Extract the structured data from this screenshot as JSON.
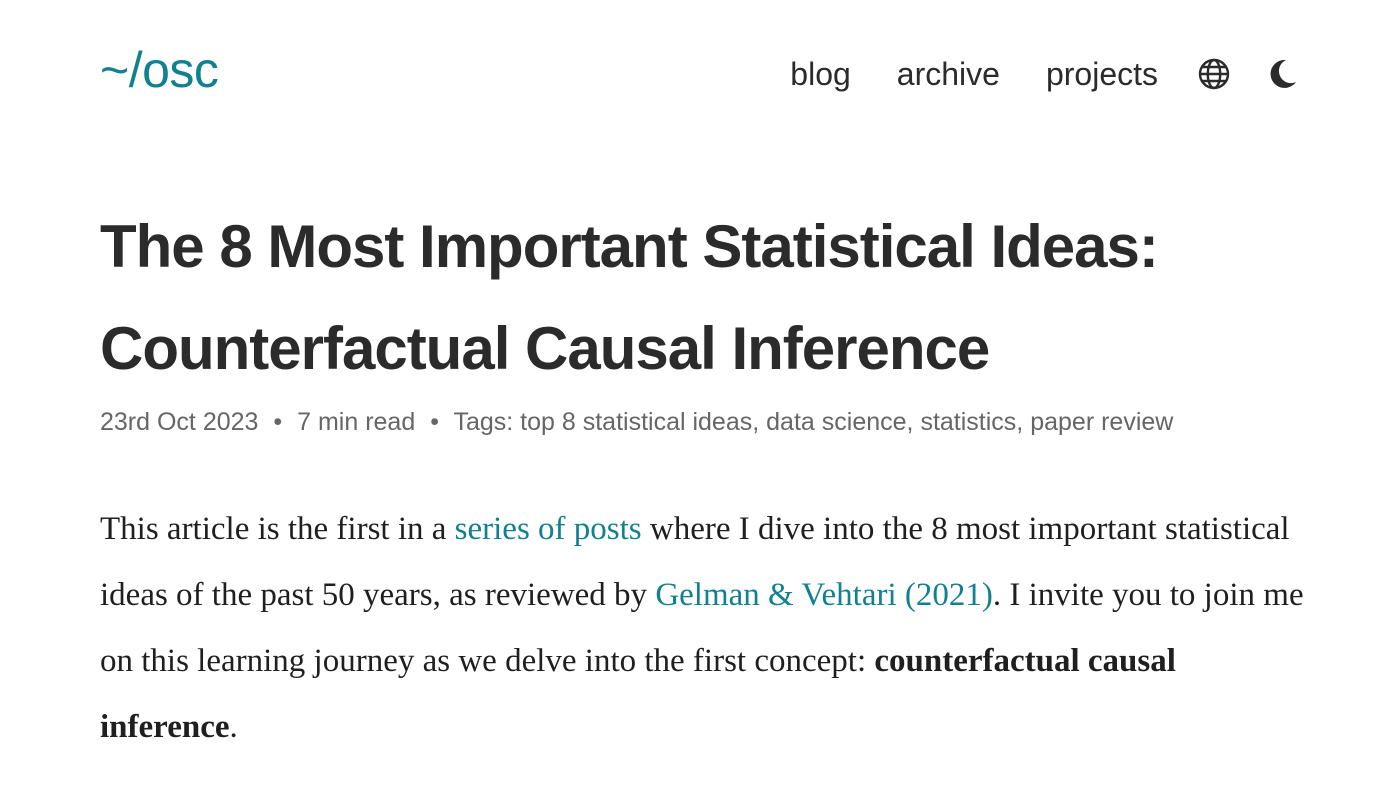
{
  "header": {
    "logo": "~/osc",
    "nav": [
      {
        "label": "blog"
      },
      {
        "label": "archive"
      },
      {
        "label": "projects"
      }
    ],
    "icons": [
      "globe-icon",
      "moon-icon"
    ]
  },
  "post": {
    "title_line1": "The 8 Most Important Statistical Ideas:",
    "title_line2": "Counterfactual Causal Inference",
    "meta": {
      "date": "23rd Oct 2023",
      "separator": "•",
      "read_time": "7 min read",
      "tags_label": "Tags:",
      "tags": [
        "top 8 statistical ideas",
        "data science",
        "statistics",
        "paper review"
      ]
    },
    "intro": {
      "part1": "This article is the first in a ",
      "link1": "series of posts",
      "part2": " where I dive into the 8 most important statistical ideas of the past 50 years, as reviewed by ",
      "link2": "Gelman & Vehtari (2021)",
      "part3": ". I invite you to join me on this learning journey as we delve into the first concept: ",
      "bold": "counterfactual causal inference",
      "part4": "."
    }
  },
  "colors": {
    "accent": "#11808f",
    "text": "#2b2b2b",
    "muted": "#666666"
  }
}
